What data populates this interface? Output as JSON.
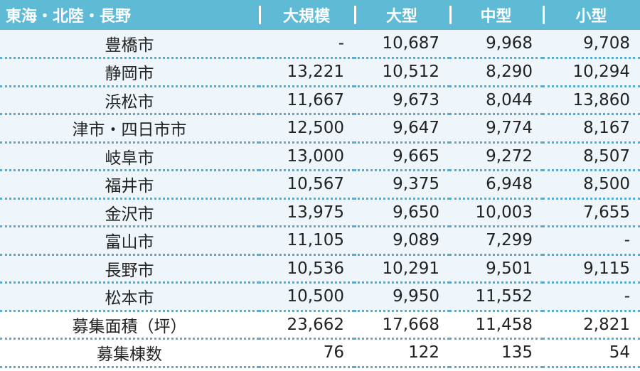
{
  "header": {
    "region": "東海・北陸・長野",
    "columns": [
      "大規模",
      "大型",
      "中型",
      "小型"
    ]
  },
  "rows": [
    {
      "name": "豊橋市",
      "values": [
        "-",
        "10,687",
        "9,968",
        "9,708"
      ]
    },
    {
      "name": "静岡市",
      "values": [
        "13,221",
        "10,512",
        "8,290",
        "10,294"
      ]
    },
    {
      "name": "浜松市",
      "values": [
        "11,667",
        "9,673",
        "8,044",
        "13,860"
      ]
    },
    {
      "name": "津市・四日市市",
      "values": [
        "12,500",
        "9,647",
        "9,774",
        "8,167"
      ]
    },
    {
      "name": "岐阜市",
      "values": [
        "13,000",
        "9,665",
        "9,272",
        "8,507"
      ]
    },
    {
      "name": "福井市",
      "values": [
        "10,567",
        "9,375",
        "6,948",
        "8,500"
      ]
    },
    {
      "name": "金沢市",
      "values": [
        "13,975",
        "9,650",
        "10,003",
        "7,655"
      ]
    },
    {
      "name": "富山市",
      "values": [
        "11,105",
        "9,089",
        "7,299",
        "-"
      ]
    },
    {
      "name": "長野市",
      "values": [
        "10,536",
        "10,291",
        "9,501",
        "9,115"
      ]
    },
    {
      "name": "松本市",
      "values": [
        "10,500",
        "9,950",
        "11,552",
        "-"
      ]
    },
    {
      "name": "募集面積（坪）",
      "values": [
        "23,662",
        "17,668",
        "11,458",
        "2,821"
      ]
    },
    {
      "name": "募集棟数",
      "values": [
        "76",
        "122",
        "135",
        "54"
      ]
    }
  ]
}
